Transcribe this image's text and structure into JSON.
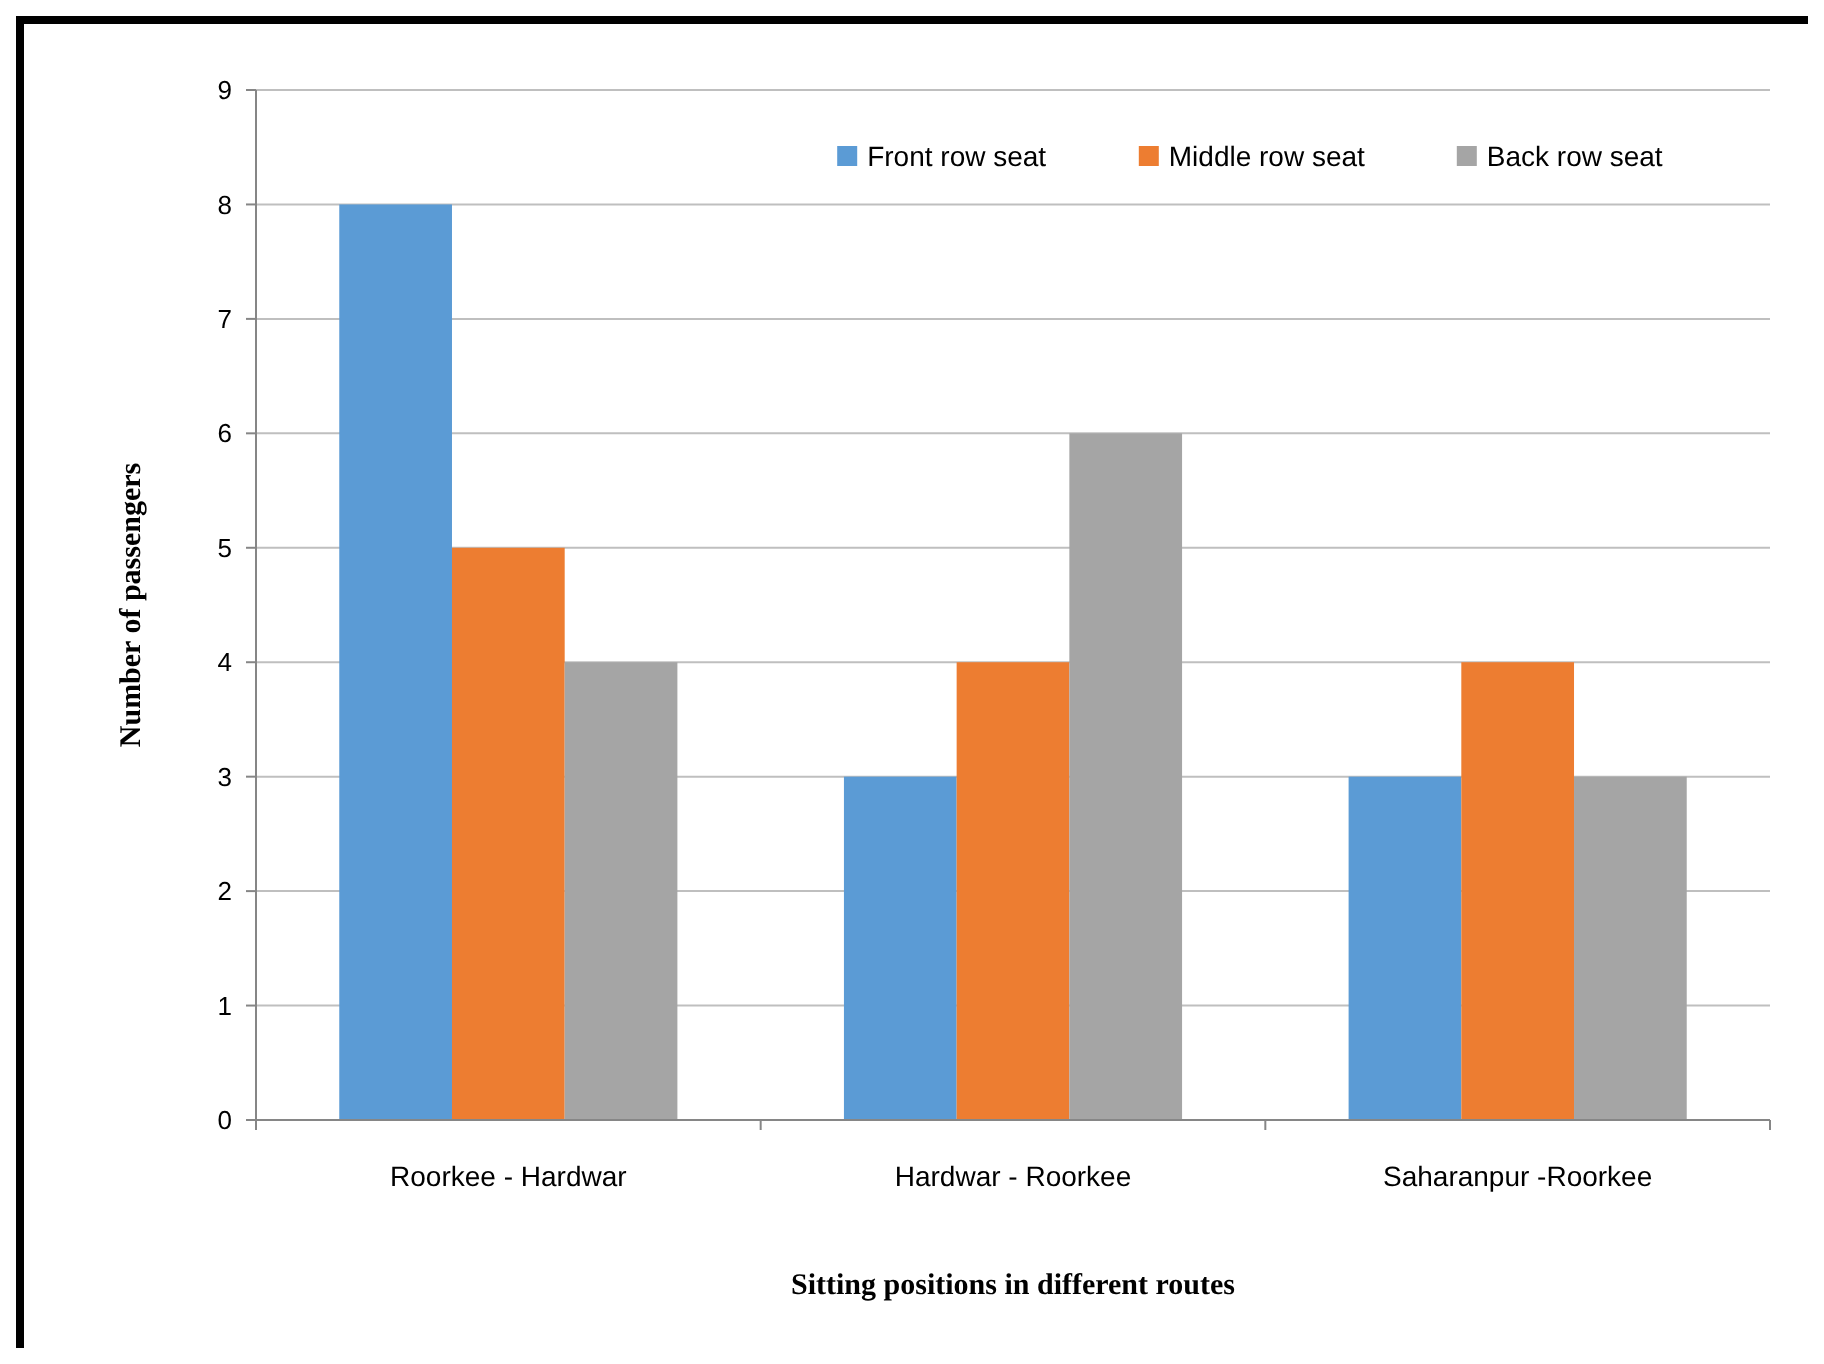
{
  "chart_data": {
    "type": "bar",
    "xlabel": "Sitting positions in different  routes",
    "ylabel": "Number  of passengers",
    "categories": [
      "Roorkee - Hardwar",
      "Hardwar - Roorkee",
      "Saharanpur -Roorkee"
    ],
    "series": [
      {
        "name": "Front row seat",
        "color": "#5b9bd5",
        "values": [
          8,
          3,
          3
        ]
      },
      {
        "name": "Middle row seat",
        "color": "#ed7d31",
        "values": [
          5,
          4,
          4
        ]
      },
      {
        "name": "Back row seat",
        "color": "#a5a5a5",
        "values": [
          4,
          6,
          3
        ]
      }
    ],
    "ylim": [
      0,
      9
    ],
    "yticks": [
      0,
      1,
      2,
      3,
      4,
      5,
      6,
      7,
      8,
      9
    ],
    "grid": "y",
    "legend": "top right"
  }
}
